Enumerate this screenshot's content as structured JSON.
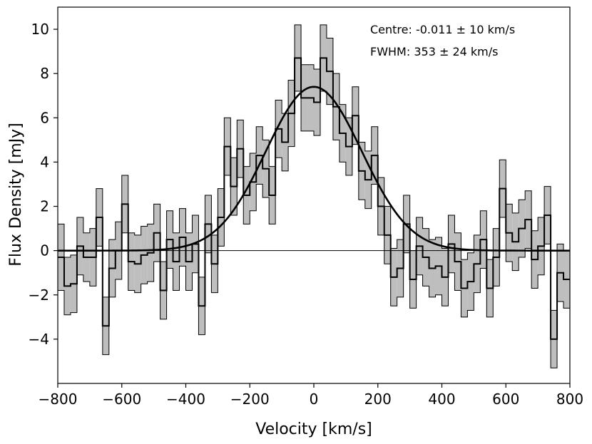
{
  "chart_data": {
    "type": "line",
    "title": "",
    "xlabel": "Velocity [km/s]",
    "ylabel": "Flux Density [mJy]",
    "xlim": [
      -800,
      800
    ],
    "ylim": [
      -6,
      11
    ],
    "xticks": [
      -800,
      -600,
      -400,
      -200,
      0,
      200,
      400,
      600,
      800
    ],
    "yticks": [
      -4,
      -2,
      0,
      2,
      4,
      6,
      8,
      10
    ],
    "grid": false,
    "zero_line": true,
    "annotations": [
      "Centre: -0.011 ± 10 km/s",
      "FWHM: 353 ± 24 km/s"
    ],
    "bin_width_kms": 20,
    "spectrum": {
      "x": [
        -790,
        -770,
        -750,
        -730,
        -710,
        -690,
        -670,
        -650,
        -630,
        -610,
        -590,
        -570,
        -550,
        -530,
        -510,
        -490,
        -470,
        -450,
        -430,
        -410,
        -390,
        -370,
        -350,
        -330,
        -310,
        -290,
        -270,
        -250,
        -230,
        -210,
        -190,
        -170,
        -150,
        -130,
        -110,
        -90,
        -70,
        -50,
        -30,
        -10,
        10,
        30,
        50,
        70,
        90,
        110,
        130,
        150,
        170,
        190,
        210,
        230,
        250,
        270,
        290,
        310,
        330,
        350,
        370,
        390,
        410,
        430,
        450,
        470,
        490,
        510,
        530,
        550,
        570,
        590,
        610,
        630,
        650,
        670,
        690,
        710,
        730,
        750,
        770,
        790
      ],
      "values": [
        -0.3,
        -1.6,
        -1.5,
        0.2,
        -0.3,
        -0.3,
        1.5,
        -3.4,
        -0.8,
        0.0,
        2.1,
        -0.5,
        -0.6,
        -0.2,
        -0.1,
        0.8,
        -1.8,
        0.5,
        -0.5,
        0.6,
        -0.5,
        0.3,
        -2.5,
        1.2,
        -0.6,
        1.5,
        4.7,
        2.9,
        4.6,
        2.5,
        3.1,
        4.3,
        3.7,
        2.5,
        5.5,
        4.9,
        6.2,
        8.7,
        6.9,
        6.9,
        6.7,
        8.7,
        8.1,
        6.5,
        5.3,
        4.7,
        6.1,
        3.6,
        3.2,
        4.3,
        2.0,
        0.7,
        -1.2,
        -0.8,
        1.2,
        -1.3,
        0.2,
        -0.3,
        -0.8,
        -0.7,
        -1.2,
        0.3,
        -0.5,
        -1.7,
        -1.4,
        -0.6,
        0.5,
        -1.7,
        -0.3,
        2.8,
        0.8,
        0.4,
        1.0,
        1.4,
        -0.4,
        0.2,
        1.6,
        -4.0,
        -1.0,
        -1.3
      ],
      "errors": [
        1.5,
        1.3,
        1.3,
        1.3,
        1.1,
        1.3,
        1.3,
        1.3,
        1.3,
        1.3,
        1.3,
        1.3,
        1.3,
        1.3,
        1.3,
        1.3,
        1.3,
        1.3,
        1.3,
        1.3,
        1.3,
        1.3,
        1.3,
        1.3,
        1.3,
        1.3,
        1.3,
        1.3,
        1.3,
        1.3,
        1.3,
        1.3,
        1.3,
        1.3,
        1.3,
        1.3,
        1.5,
        1.5,
        1.5,
        1.5,
        1.5,
        1.5,
        1.5,
        1.5,
        1.3,
        1.3,
        1.3,
        1.3,
        1.3,
        1.3,
        1.3,
        1.3,
        1.3,
        1.3,
        1.3,
        1.3,
        1.3,
        1.3,
        1.3,
        1.3,
        1.3,
        1.3,
        1.3,
        1.3,
        1.3,
        1.3,
        1.3,
        1.3,
        1.3,
        1.3,
        1.3,
        1.3,
        1.3,
        1.3,
        1.3,
        1.3,
        1.3,
        1.3,
        1.3,
        1.3
      ]
    },
    "fit": {
      "type": "gaussian",
      "amplitude": 7.4,
      "centre": -0.011,
      "fwhm": 353
    },
    "colors": {
      "band_fill": "#bebebe",
      "line": "#000000",
      "axes": "#000000"
    }
  }
}
